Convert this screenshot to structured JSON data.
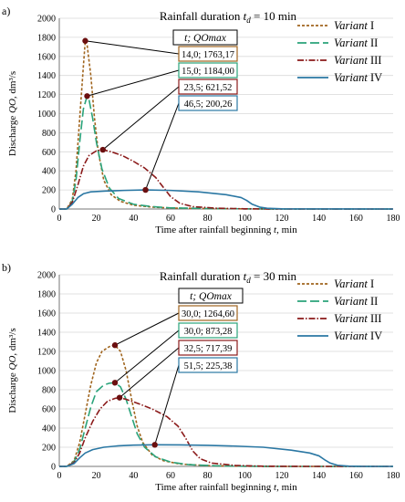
{
  "chart_data": [
    {
      "type": "line",
      "panel_label": "a)",
      "title_prefix": "Rainfall duration",
      "title_var": "t",
      "title_sub": "d",
      "title_suffix": " = 10 min",
      "ylabel_main": "Discharge",
      "ylabel_var": "QO",
      "ylabel_unit": ", dm³/s",
      "xlabel_main": "Time after rainfall beginning",
      "xlabel_var": "t",
      "xlabel_unit": ", min",
      "xlim": [
        0,
        180
      ],
      "ylim": [
        0,
        2000
      ],
      "x_ticks": [
        0,
        20,
        40,
        60,
        80,
        100,
        120,
        140,
        160,
        180
      ],
      "y_ticks": [
        0,
        200,
        400,
        600,
        800,
        1000,
        1200,
        1400,
        1600,
        1800,
        2000
      ],
      "legend_position": "top-right",
      "annotation_header": "t; QOmax",
      "series": [
        {
          "name_italic": "Variant",
          "name_roman": " I",
          "color": "#a0651e",
          "dash": "3,2",
          "points": [
            [
              0,
              0
            ],
            [
              4,
              0
            ],
            [
              7,
              100
            ],
            [
              9,
              400
            ],
            [
              11,
              950
            ],
            [
              13,
              1500
            ],
            [
              14,
              1763
            ],
            [
              15,
              1720
            ],
            [
              17,
              1400
            ],
            [
              19,
              950
            ],
            [
              21,
              600
            ],
            [
              24,
              300
            ],
            [
              28,
              150
            ],
            [
              33,
              80
            ],
            [
              40,
              40
            ],
            [
              50,
              20
            ],
            [
              60,
              10
            ],
            [
              80,
              5
            ],
            [
              100,
              2
            ],
            [
              120,
              0
            ],
            [
              180,
              0
            ]
          ],
          "peak": [
            14.0,
            1763.17
          ],
          "label": "14,0; 1763,17"
        },
        {
          "name_italic": "Variant",
          "name_roman": " II",
          "color": "#2aa37a",
          "dash": "10,4",
          "points": [
            [
              0,
              0
            ],
            [
              4,
              0
            ],
            [
              7,
              80
            ],
            [
              9,
              300
            ],
            [
              11,
              700
            ],
            [
              13,
              1050
            ],
            [
              15,
              1184
            ],
            [
              16,
              1150
            ],
            [
              18,
              950
            ],
            [
              20,
              700
            ],
            [
              23,
              420
            ],
            [
              27,
              220
            ],
            [
              32,
              110
            ],
            [
              40,
              50
            ],
            [
              50,
              25
            ],
            [
              60,
              12
            ],
            [
              80,
              5
            ],
            [
              100,
              2
            ],
            [
              120,
              0
            ],
            [
              180,
              0
            ]
          ],
          "peak": [
            15.0,
            1184.0
          ],
          "label": "15,0; 1184,00"
        },
        {
          "name_italic": "Variant",
          "name_roman": " III",
          "color": "#8b1a1a",
          "dash": "7,2,1.5,2",
          "points": [
            [
              0,
              0
            ],
            [
              4,
              0
            ],
            [
              7,
              70
            ],
            [
              10,
              250
            ],
            [
              13,
              450
            ],
            [
              16,
              560
            ],
            [
              20,
              610
            ],
            [
              23.5,
              621.52
            ],
            [
              28,
              600
            ],
            [
              34,
              560
            ],
            [
              40,
              500
            ],
            [
              46,
              430
            ],
            [
              52,
              330
            ],
            [
              56,
              230
            ],
            [
              60,
              130
            ],
            [
              65,
              60
            ],
            [
              72,
              25
            ],
            [
              85,
              8
            ],
            [
              100,
              2
            ],
            [
              120,
              0
            ],
            [
              180,
              0
            ]
          ],
          "peak": [
            23.5,
            621.52
          ],
          "label": "23,5; 621,52"
        },
        {
          "name_italic": "Variant",
          "name_roman": " IV",
          "color": "#2a77a3",
          "dash": "",
          "points": [
            [
              0,
              0
            ],
            [
              4,
              0
            ],
            [
              7,
              50
            ],
            [
              10,
              120
            ],
            [
              13,
              160
            ],
            [
              17,
              180
            ],
            [
              25,
              188
            ],
            [
              35,
              195
            ],
            [
              46.5,
              200.26
            ],
            [
              60,
              195
            ],
            [
              75,
              180
            ],
            [
              90,
              150
            ],
            [
              98,
              120
            ],
            [
              101,
              90
            ],
            [
              104,
              50
            ],
            [
              108,
              20
            ],
            [
              112,
              8
            ],
            [
              120,
              2
            ],
            [
              180,
              0
            ]
          ],
          "peak": [
            46.5,
            200.26
          ],
          "label": "46,5; 200,26"
        }
      ]
    },
    {
      "type": "line",
      "panel_label": "b)",
      "title_prefix": "Rainfall duration",
      "title_var": "t",
      "title_sub": "d",
      "title_suffix": " = 30 min",
      "ylabel_main": "Discharge",
      "ylabel_var": "QO",
      "ylabel_unit": ", dm³/s",
      "xlabel_main": "Time after rainfall beginning",
      "xlabel_var": "t",
      "xlabel_unit": ", min",
      "xlim": [
        0,
        180
      ],
      "ylim": [
        0,
        2000
      ],
      "x_ticks": [
        0,
        20,
        40,
        60,
        80,
        100,
        120,
        140,
        160,
        180
      ],
      "y_ticks": [
        0,
        200,
        400,
        600,
        800,
        1000,
        1200,
        1400,
        1600,
        1800,
        2000
      ],
      "legend_position": "top-right",
      "annotation_header": "t; QOmax",
      "series": [
        {
          "name_italic": "Variant",
          "name_roman": " I",
          "color": "#a0651e",
          "dash": "3,2",
          "points": [
            [
              0,
              0
            ],
            [
              4,
              0
            ],
            [
              8,
              60
            ],
            [
              11,
              250
            ],
            [
              14,
              550
            ],
            [
              17,
              850
            ],
            [
              20,
              1080
            ],
            [
              23,
              1200
            ],
            [
              27,
              1250
            ],
            [
              30,
              1264.6
            ],
            [
              33,
              1200
            ],
            [
              36,
              1000
            ],
            [
              39,
              700
            ],
            [
              42,
              420
            ],
            [
              45,
              250
            ],
            [
              50,
              120
            ],
            [
              56,
              60
            ],
            [
              65,
              25
            ],
            [
              80,
              8
            ],
            [
              100,
              2
            ],
            [
              120,
              0
            ],
            [
              180,
              0
            ]
          ],
          "peak": [
            30.0,
            1264.6
          ],
          "label": "30,0; 1264,60"
        },
        {
          "name_italic": "Variant",
          "name_roman": " II",
          "color": "#2aa37a",
          "dash": "10,4",
          "points": [
            [
              0,
              0
            ],
            [
              4,
              0
            ],
            [
              8,
              50
            ],
            [
              11,
              180
            ],
            [
              14,
              400
            ],
            [
              17,
              620
            ],
            [
              20,
              780
            ],
            [
              24,
              850
            ],
            [
              27,
              868
            ],
            [
              30,
              873.28
            ],
            [
              33,
              830
            ],
            [
              36,
              700
            ],
            [
              39,
              520
            ],
            [
              42,
              340
            ],
            [
              46,
              200
            ],
            [
              52,
              100
            ],
            [
              60,
              45
            ],
            [
              70,
              18
            ],
            [
              85,
              6
            ],
            [
              100,
              2
            ],
            [
              120,
              0
            ],
            [
              180,
              0
            ]
          ],
          "peak": [
            30.0,
            873.28
          ],
          "label": "30,0; 873,28"
        },
        {
          "name_italic": "Variant",
          "name_roman": " III",
          "color": "#8b1a1a",
          "dash": "7,2,1.5,2",
          "points": [
            [
              0,
              0
            ],
            [
              4,
              0
            ],
            [
              8,
              40
            ],
            [
              11,
              140
            ],
            [
              14,
              300
            ],
            [
              18,
              470
            ],
            [
              22,
              600
            ],
            [
              26,
              680
            ],
            [
              30,
              710
            ],
            [
              32.5,
              717.39
            ],
            [
              36,
              700
            ],
            [
              42,
              660
            ],
            [
              50,
              600
            ],
            [
              58,
              520
            ],
            [
              64,
              420
            ],
            [
              68,
              300
            ],
            [
              72,
              160
            ],
            [
              76,
              80
            ],
            [
              82,
              35
            ],
            [
              95,
              10
            ],
            [
              110,
              2
            ],
            [
              130,
              0
            ],
            [
              180,
              0
            ]
          ],
          "peak": [
            32.5,
            717.39
          ],
          "label": "32,5; 717,39"
        },
        {
          "name_italic": "Variant",
          "name_roman": " IV",
          "color": "#2a77a3",
          "dash": "",
          "points": [
            [
              0,
              0
            ],
            [
              4,
              0
            ],
            [
              8,
              30
            ],
            [
              11,
              90
            ],
            [
              14,
              140
            ],
            [
              18,
              175
            ],
            [
              24,
              200
            ],
            [
              32,
              215
            ],
            [
              40,
              222
            ],
            [
              51.5,
              225.38
            ],
            [
              65,
              224
            ],
            [
              80,
              220
            ],
            [
              95,
              212
            ],
            [
              110,
              200
            ],
            [
              125,
              170
            ],
            [
              135,
              140
            ],
            [
              140,
              110
            ],
            [
              143,
              70
            ],
            [
              146,
              35
            ],
            [
              150,
              12
            ],
            [
              156,
              3
            ],
            [
              165,
              0
            ],
            [
              180,
              0
            ]
          ],
          "peak": [
            51.5,
            225.38
          ],
          "label": "51,5; 225,38"
        }
      ]
    }
  ]
}
